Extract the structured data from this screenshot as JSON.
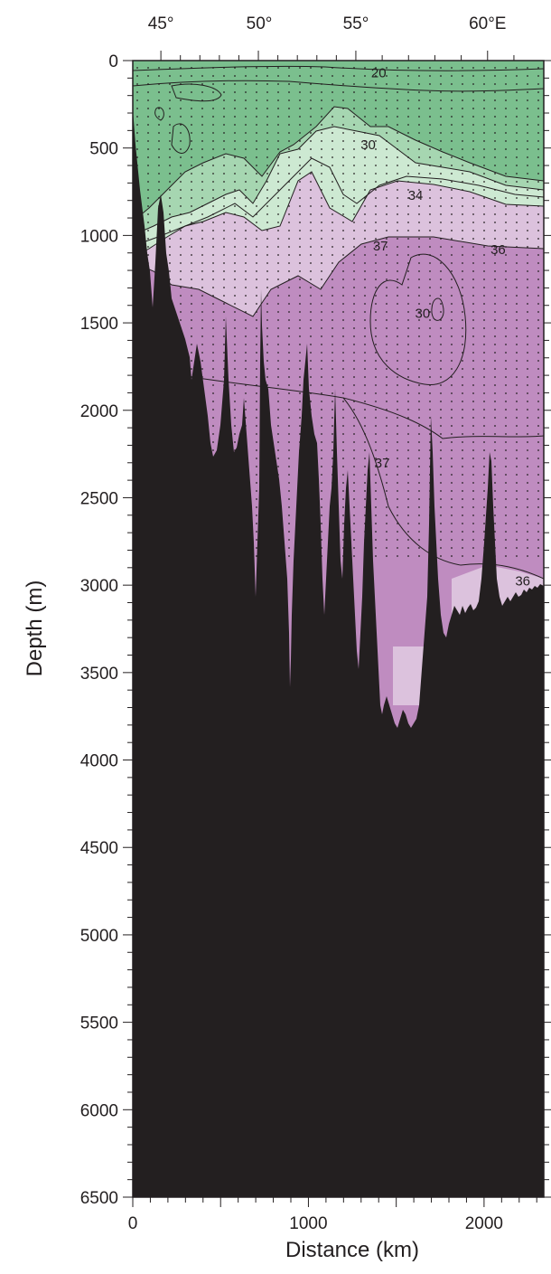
{
  "chart_data": {
    "type": "contour-section",
    "title": "",
    "xlabel": "Distance (km)",
    "ylabel": "Depth (m)",
    "xlim": [
      0,
      2340
    ],
    "ylim": [
      6500,
      0
    ],
    "x_ticks": [
      {
        "value": 0,
        "label": "0"
      },
      {
        "value": 1000,
        "label": "1000"
      },
      {
        "value": 2000,
        "label": "2000"
      }
    ],
    "y_ticks": [
      {
        "value": 0,
        "label": "0"
      },
      {
        "value": 500,
        "label": "500"
      },
      {
        "value": 1000,
        "label": "1000"
      },
      {
        "value": 1500,
        "label": "1500"
      },
      {
        "value": 2000,
        "label": "2000"
      },
      {
        "value": 2500,
        "label": "2500"
      },
      {
        "value": 3000,
        "label": "3000"
      },
      {
        "value": 3500,
        "label": "3500"
      },
      {
        "value": 4000,
        "label": "4000"
      },
      {
        "value": 4500,
        "label": "4500"
      },
      {
        "value": 5000,
        "label": "5000"
      },
      {
        "value": 5500,
        "label": "5500"
      },
      {
        "value": 6000,
        "label": "6000"
      },
      {
        "value": 6500,
        "label": "6500"
      }
    ],
    "top_axis_ticks": [
      {
        "distance_km": 160,
        "label": "45°"
      },
      {
        "distance_km": 720,
        "label": "50°"
      },
      {
        "distance_km": 1270,
        "label": "55°"
      },
      {
        "distance_km": 2020,
        "label": "60°E"
      }
    ],
    "contour_labels": [
      {
        "text": "20",
        "x_km": 1400,
        "depth_m": 70
      },
      {
        "text": "30",
        "x_km": 1340,
        "depth_m": 480
      },
      {
        "text": "34",
        "x_km": 1610,
        "depth_m": 770
      },
      {
        "text": "37",
        "x_km": 1410,
        "depth_m": 1060
      },
      {
        "text": "36",
        "x_km": 2080,
        "depth_m": 1080
      },
      {
        "text": "30",
        "x_km": 1650,
        "depth_m": 1445
      },
      {
        "text": "37",
        "x_km": 1420,
        "depth_m": 2300
      },
      {
        "text": "36",
        "x_km": 2220,
        "depth_m": 2975
      }
    ],
    "colors": {
      "dark_green": "#7bbf8e",
      "mid_green": "#a6d6b1",
      "light_green": "#cde9d2",
      "light_purple": "#dcc2dd",
      "purple": "#bf8cc0",
      "seafloor": "#231f20",
      "contour": "#231f20"
    }
  }
}
